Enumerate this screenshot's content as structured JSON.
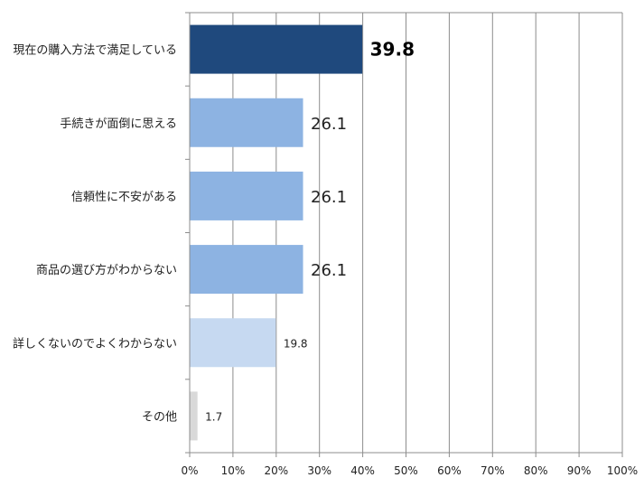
{
  "chart_data": {
    "type": "bar",
    "orientation": "horizontal",
    "categories": [
      "現在の購入方法で満足している",
      "手続きが面倒に思える",
      "信頼性に不安がある",
      "商品の選び方がわからない",
      "詳しくないのでよくわからない",
      "その他"
    ],
    "values": [
      39.8,
      26.1,
      26.1,
      26.1,
      19.8,
      1.7
    ],
    "value_labels": [
      "39.8",
      "26.1",
      "26.1",
      "26.1",
      "19.8",
      "1.7"
    ],
    "bar_colors": [
      "#1f497d",
      "#8db3e2",
      "#8db3e2",
      "#8db3e2",
      "#c6d9f1",
      "#d9d9d9"
    ],
    "xlim": [
      0,
      100
    ],
    "x_ticks": [
      "0%",
      "10%",
      "20%",
      "30%",
      "40%",
      "50%",
      "60%",
      "70%",
      "80%",
      "90%",
      "100%"
    ],
    "grid": true,
    "title": "",
    "xlabel": "",
    "ylabel": ""
  }
}
